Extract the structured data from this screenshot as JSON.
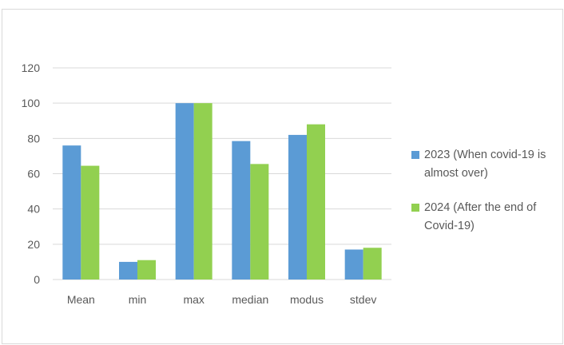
{
  "chart_data": {
    "type": "bar",
    "categories": [
      "Mean",
      "min",
      "max",
      "median",
      "modus",
      "stdev"
    ],
    "series": [
      {
        "name": "2023 (When covid-19 is almost over)",
        "values": [
          76,
          10,
          100,
          78.5,
          82,
          17
        ],
        "color": "#5b9bd5"
      },
      {
        "name": "2024 (After the end of Covid-19)",
        "values": [
          64.5,
          11,
          100,
          65.5,
          88,
          18
        ],
        "color": "#92d050"
      }
    ],
    "title": "",
    "xlabel": "",
    "ylabel": "",
    "ylim": [
      0,
      120
    ],
    "yticks": [
      "0",
      "20",
      "40",
      "60",
      "80",
      "100",
      "120"
    ],
    "grid": true,
    "legend_position": "right"
  }
}
